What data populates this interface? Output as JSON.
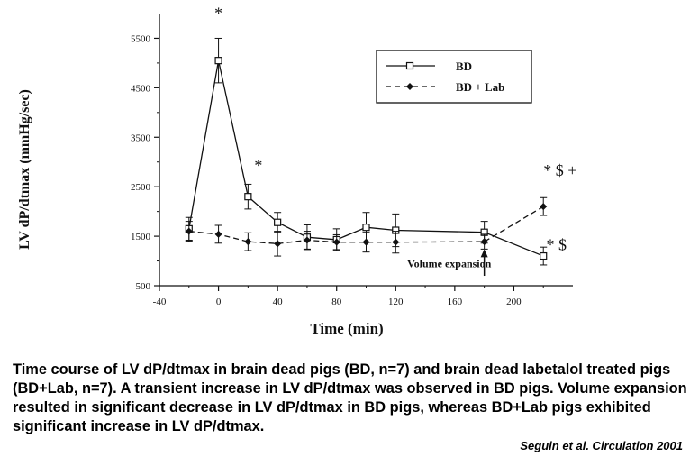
{
  "chart_data": {
    "type": "line",
    "xlabel": "Time (min)",
    "ylabel": "LV dP/dtmax (mmHg/sec)",
    "xlim": [
      -40,
      240
    ],
    "ylim": [
      500,
      6000
    ],
    "xticks": [
      -40,
      0,
      40,
      80,
      120,
      160,
      200
    ],
    "yticks": [
      500,
      1500,
      2500,
      3500,
      4500,
      5500
    ],
    "legend_position": "top-right",
    "series": [
      {
        "name": "BD",
        "style": "solid-open-square",
        "x": [
          -20,
          0,
          20,
          40,
          60,
          80,
          100,
          120,
          180,
          220
        ],
        "y": [
          1650,
          5050,
          2300,
          1780,
          1480,
          1430,
          1680,
          1620,
          1580,
          1100
        ],
        "err": [
          230,
          450,
          250,
          200,
          250,
          220,
          300,
          330,
          220,
          180
        ]
      },
      {
        "name": "BD + Lab",
        "style": "dashed-filled-diamond",
        "x": [
          -20,
          0,
          20,
          40,
          60,
          80,
          100,
          120,
          180,
          220
        ],
        "y": [
          1600,
          1540,
          1390,
          1350,
          1420,
          1380,
          1380,
          1380,
          1390,
          2100
        ],
        "err": [
          200,
          180,
          180,
          250,
          180,
          150,
          200,
          220,
          150,
          180
        ]
      }
    ],
    "annotations": [
      {
        "text": "*",
        "x": 0,
        "y": 5900
      },
      {
        "text": "*",
        "x": 27,
        "y": 2820
      },
      {
        "text": "* $ +",
        "x": 220,
        "y": 2720
      },
      {
        "text": "* $",
        "x": 222,
        "y": 1220
      },
      {
        "text": "Volume expansion",
        "x": 140,
        "y": 870
      }
    ],
    "arrow": {
      "x": 180,
      "y_from": 700,
      "y_to": 1240
    }
  },
  "caption": {
    "text": "Time course of LV dP/dtmax in brain dead pigs (BD, n=7) and brain dead labetalol treated pigs (BD+Lab, n=7). A transient increase in LV dP/dtmax was observed in BD pigs. Volume expansion resulted in significant decrease in LV dP/dtmax in BD pigs, whereas BD+Lab pigs exhibited significant increase in LV dP/dtmax.",
    "citation": "Seguin et al. Circulation 2001"
  },
  "colors": {
    "line": "#111111",
    "background": "#ffffff"
  }
}
